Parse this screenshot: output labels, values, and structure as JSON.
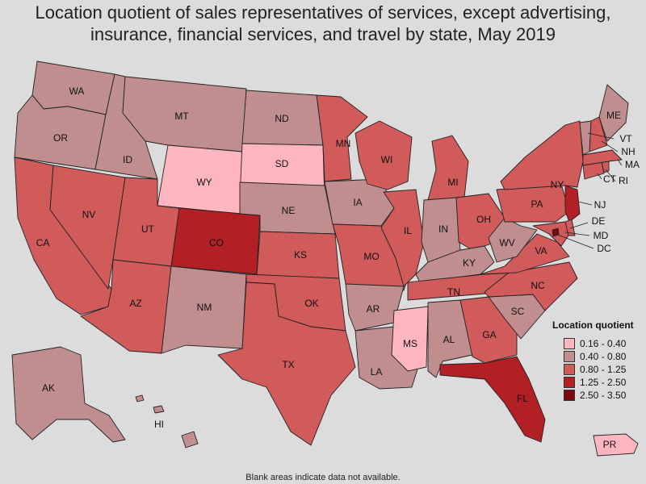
{
  "title": "Location quotient of sales representatives of services, except advertising, insurance, financial services, and travel by state, May 2019",
  "legend": {
    "title": "Location quotient",
    "items": [
      {
        "label": "0.16 - 0.40",
        "color": "#ffb6c1"
      },
      {
        "label": "0.40 - 0.80",
        "color": "#c08e8e"
      },
      {
        "label": "0.80 - 1.25",
        "color": "#d15a5a"
      },
      {
        "label": "1.25 - 2.50",
        "color": "#b21f24"
      },
      {
        "label": "2.50 - 3.50",
        "color": "#7a0a0e"
      }
    ]
  },
  "footnote": "Blank areas indicate data not available.",
  "states": {
    "WA": "0.40 - 0.80",
    "OR": "0.40 - 0.80",
    "CA": "0.80 - 1.25",
    "NV": "0.80 - 1.25",
    "ID": "0.40 - 0.80",
    "MT": "0.40 - 0.80",
    "WY": "0.16 - 0.40",
    "UT": "0.80 - 1.25",
    "AZ": "0.80 - 1.25",
    "CO": "1.25 - 2.50",
    "NM": "0.40 - 0.80",
    "ND": "0.40 - 0.80",
    "SD": "0.16 - 0.40",
    "NE": "0.40 - 0.80",
    "KS": "0.80 - 1.25",
    "OK": "0.80 - 1.25",
    "TX": "0.80 - 1.25",
    "MN": "0.80 - 1.25",
    "IA": "0.40 - 0.80",
    "MO": "0.80 - 1.25",
    "AR": "0.40 - 0.80",
    "LA": "0.40 - 0.80",
    "WI": "0.80 - 1.25",
    "IL": "0.80 - 1.25",
    "MI": "0.80 - 1.25",
    "IN": "0.40 - 0.80",
    "OH": "0.80 - 1.25",
    "KY": "0.40 - 0.80",
    "TN": "0.80 - 1.25",
    "MS": "0.16 - 0.40",
    "AL": "0.40 - 0.80",
    "GA": "0.80 - 1.25",
    "FL": "1.25 - 2.50",
    "SC": "0.40 - 0.80",
    "NC": "0.80 - 1.25",
    "VA": "0.80 - 1.25",
    "WV": "0.40 - 0.80",
    "PA": "0.80 - 1.25",
    "NY": "0.80 - 1.25",
    "NJ": "1.25 - 2.50",
    "DE": "0.80 - 1.25",
    "MD": "0.80 - 1.25",
    "DC": "2.50 - 3.50",
    "CT": "0.80 - 1.25",
    "RI": "0.80 - 1.25",
    "MA": "0.80 - 1.25",
    "VT": "0.40 - 0.80",
    "NH": "0.80 - 1.25",
    "ME": "0.40 - 0.80",
    "AK": "0.40 - 0.80",
    "HI": "0.40 - 0.80",
    "PR": "0.16 - 0.40"
  }
}
